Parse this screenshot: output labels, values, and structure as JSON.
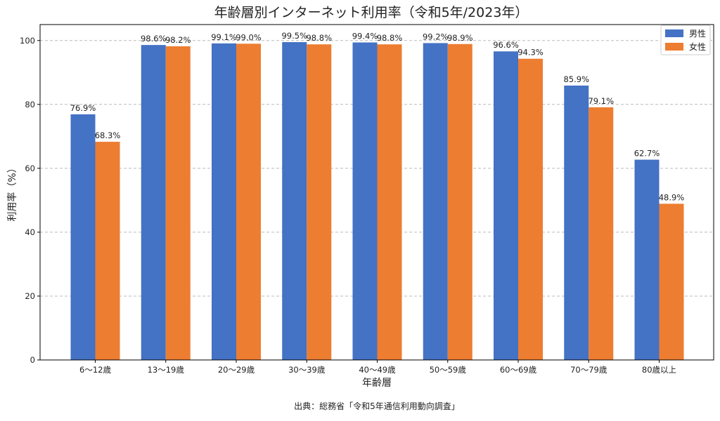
{
  "chart_data": {
    "type": "bar",
    "title": "年齢層別インターネット利用率（令和5年/2023年）",
    "xlabel": "年齢層",
    "ylabel": "利用率（%）",
    "categories": [
      "6〜12歳",
      "13〜19歳",
      "20〜29歳",
      "30〜39歳",
      "40〜49歳",
      "50〜59歳",
      "60〜69歳",
      "70〜79歳",
      "80歳以上"
    ],
    "series": [
      {
        "name": "男性",
        "color": "#4472c4",
        "values": [
          76.9,
          98.6,
          99.1,
          99.5,
          99.4,
          99.2,
          96.6,
          85.9,
          62.7
        ],
        "labels": [
          "76.9%",
          "98.6%",
          "99.1%",
          "99.5%",
          "99.4%",
          "99.2%",
          "96.6%",
          "85.9%",
          "62.7%"
        ]
      },
      {
        "name": "女性",
        "color": "#ed7d31",
        "values": [
          68.3,
          98.2,
          99.0,
          98.8,
          98.8,
          98.9,
          94.3,
          79.1,
          48.9
        ],
        "labels": [
          "68.3%",
          "98.2%",
          "99.0%",
          "98.8%",
          "98.8%",
          "98.9%",
          "94.3%",
          "79.1%",
          "48.9%"
        ]
      }
    ],
    "ylim": [
      0,
      105
    ],
    "yticks": [
      0,
      20,
      40,
      60,
      80,
      100
    ],
    "ytick_labels": [
      "0",
      "20",
      "40",
      "60",
      "80",
      "100"
    ],
    "grid": "horizontal dashed",
    "legend_position": "top-right",
    "source": "出典：総務省「令和5年通信利用動向調査」"
  }
}
